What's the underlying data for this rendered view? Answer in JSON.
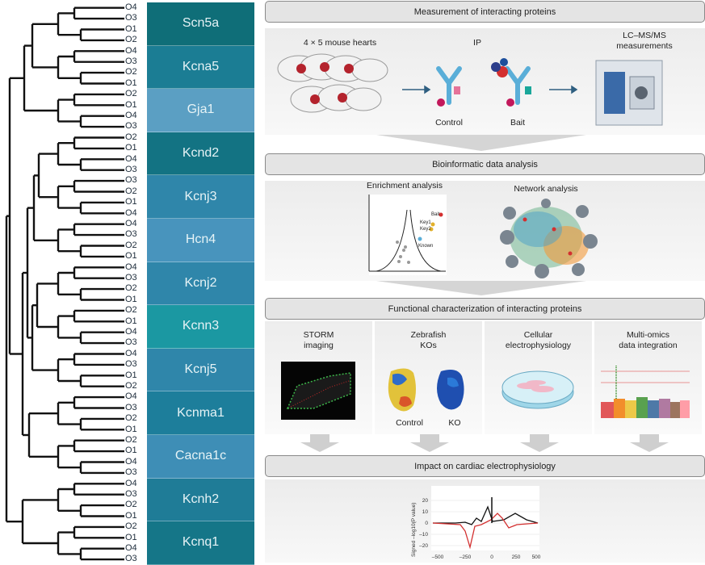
{
  "dendrogram": {
    "groups": [
      {
        "gene": "Scn5a",
        "color": "#0f6e78",
        "reps": [
          "O4",
          "O3",
          "O1",
          "O2"
        ]
      },
      {
        "gene": "Kcna5",
        "color": "#1b7d94",
        "reps": [
          "O4",
          "O3",
          "O2",
          "O1"
        ]
      },
      {
        "gene": "Gja1",
        "color": "#5b9fc3",
        "reps": [
          "O2",
          "O1",
          "O4",
          "O3"
        ]
      },
      {
        "gene": "Kcnd2",
        "color": "#137383",
        "reps": [
          "O2",
          "O1",
          "O4",
          "O3"
        ]
      },
      {
        "gene": "Kcnj3",
        "color": "#2f86aa",
        "reps": [
          "O3",
          "O2",
          "O1",
          "O4"
        ]
      },
      {
        "gene": "Hcn4",
        "color": "#4894bd",
        "reps": [
          "O4",
          "O3",
          "O2",
          "O1"
        ]
      },
      {
        "gene": "Kcnj2",
        "color": "#2f86aa",
        "reps": [
          "O4",
          "O3",
          "O2",
          "O1"
        ]
      },
      {
        "gene": "Kcnn3",
        "color": "#1b98a2",
        "reps": [
          "O2",
          "O1",
          "O4",
          "O3"
        ]
      },
      {
        "gene": "Kcnj5",
        "color": "#2f86aa",
        "reps": [
          "O4",
          "O3",
          "O1",
          "O2"
        ]
      },
      {
        "gene": "Kcnma1",
        "color": "#1d7e9b",
        "reps": [
          "O4",
          "O3",
          "O2",
          "O1"
        ]
      },
      {
        "gene": "Cacna1c",
        "color": "#3e8eb6",
        "reps": [
          "O2",
          "O1",
          "O4",
          "O3"
        ]
      },
      {
        "gene": "Kcnh2",
        "color": "#1f7c97",
        "reps": [
          "O4",
          "O3",
          "O2",
          "O1"
        ]
      },
      {
        "gene": "Kcnq1",
        "color": "#157688",
        "reps": [
          "O2",
          "O1",
          "O4",
          "O3"
        ]
      }
    ]
  },
  "workflow": {
    "step1": {
      "title": "Measurement of interacting proteins",
      "hearts_label": "4 × 5 mouse hearts",
      "ip_label": "IP",
      "ms_label_line1": "LC–MS/MS",
      "ms_label_line2": "measurements",
      "control_label": "Control",
      "bait_label": "Bait"
    },
    "step2": {
      "title": "Bioinformatic data analysis",
      "enrichment_label": "Enrichment analysis",
      "network_label": "Network analysis",
      "volcano_labels": [
        "Bait",
        "Key1",
        "Key2",
        "Known"
      ]
    },
    "step3": {
      "title": "Functional characterization of interacting proteins",
      "panels": [
        {
          "line1": "STORM",
          "line2": "imaging"
        },
        {
          "line1": "Zebrafish",
          "line2": "KOs"
        },
        {
          "line1": "Cellular",
          "line2": "electrophysiology"
        },
        {
          "line1": "Multi-omics",
          "line2": "data integration"
        }
      ],
      "zebrafish_control": "Control",
      "zebrafish_ko": "KO"
    },
    "step4": {
      "title": "Impact on cardiac electrophysiology",
      "ylabel": "Signed –log10(P value)",
      "yticks": [
        "20",
        "10",
        "0",
        "–10",
        "–20"
      ],
      "xticks": [
        "–500",
        "–250",
        "0",
        "250",
        "500"
      ]
    }
  },
  "colors": {
    "accent_red": "#d32f2f",
    "header_bg": "#e4e4e4",
    "arrow": "#c8c8c8"
  }
}
